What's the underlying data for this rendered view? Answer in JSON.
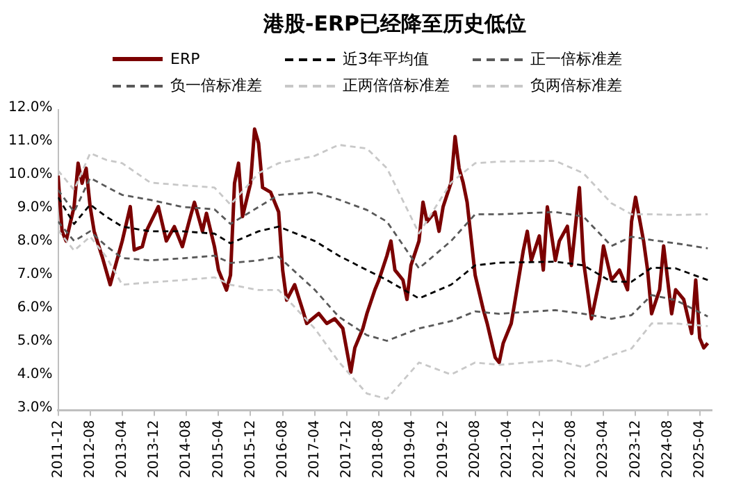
{
  "chart_data": {
    "type": "line",
    "title": "港股-ERP已经降至历史低位",
    "legend": "top",
    "marker": "none",
    "xlim": [
      "2011-12",
      "2025-07"
    ],
    "xticks": [
      "2011-12",
      "2012-08",
      "2013-04",
      "2013-12",
      "2014-08",
      "2015-04",
      "2015-12",
      "2016-08",
      "2017-04",
      "2017-12",
      "2018-08",
      "2019-04",
      "2019-12",
      "2020-08",
      "2021-04",
      "2021-12",
      "2022-08",
      "2023-04",
      "2023-12",
      "2024-08",
      "2025-04"
    ],
    "ylim": [
      3,
      12
    ],
    "yticks": [
      {
        "value": 3,
        "label": "3.0%"
      },
      {
        "value": 4,
        "label": "4.0%"
      },
      {
        "value": 5,
        "label": "5.0%"
      },
      {
        "value": 6,
        "label": "6.0%"
      },
      {
        "value": 7,
        "label": "7.0%"
      },
      {
        "value": 8,
        "label": "8.0%"
      },
      {
        "value": 9,
        "label": "9.0%"
      },
      {
        "value": 10,
        "label": "10.0%"
      },
      {
        "value": 11,
        "label": "11.0%"
      },
      {
        "value": 12,
        "label": "12.0%"
      }
    ],
    "series": [
      {
        "name": "ERP",
        "color": "#7b0000",
        "line_style": "solid",
        "x": [
          "2011-12",
          "2012-01",
          "2012-02",
          "2012-04",
          "2012-05",
          "2012-06",
          "2012-07",
          "2012-08",
          "2012-09",
          "2012-11",
          "2013-01",
          "2013-02",
          "2013-04",
          "2013-06",
          "2013-07",
          "2013-09",
          "2013-10",
          "2014-01",
          "2014-03",
          "2014-05",
          "2014-07",
          "2014-09",
          "2014-10",
          "2014-12",
          "2015-01",
          "2015-03",
          "2015-04",
          "2015-06",
          "2015-07",
          "2015-08",
          "2015-09",
          "2015-10",
          "2015-12",
          "2016-01",
          "2016-02",
          "2016-03",
          "2016-05",
          "2016-07",
          "2016-08",
          "2016-09",
          "2016-11",
          "2017-01",
          "2017-02",
          "2017-05",
          "2017-07",
          "2017-09",
          "2017-11",
          "2018-01",
          "2018-02",
          "2018-04",
          "2018-05",
          "2018-07",
          "2018-08",
          "2018-10",
          "2018-11",
          "2018-12",
          "2019-02",
          "2019-03",
          "2019-04",
          "2019-06",
          "2019-07",
          "2019-08",
          "2019-10",
          "2019-11",
          "2019-12",
          "2020-02",
          "2020-03",
          "2020-04",
          "2020-05",
          "2020-06",
          "2020-08",
          "2020-10",
          "2020-11",
          "2021-01",
          "2021-02",
          "2021-03",
          "2021-05",
          "2021-06",
          "2021-08",
          "2021-09",
          "2021-10",
          "2021-12",
          "2022-01",
          "2022-02",
          "2022-04",
          "2022-05",
          "2022-07",
          "2022-08",
          "2022-10",
          "2022-11",
          "2023-01",
          "2023-03",
          "2023-04",
          "2023-06",
          "2023-08",
          "2023-10",
          "2023-11",
          "2023-12",
          "2024-02",
          "2024-03",
          "2024-04",
          "2024-06",
          "2024-07",
          "2024-09",
          "2024-10",
          "2024-12",
          "2025-02",
          "2025-03",
          "2025-04",
          "2025-05",
          "2025-06"
        ],
        "values": [
          10.03,
          8.36,
          8.07,
          9.1,
          10.4,
          9.8,
          10.25,
          9.1,
          8.36,
          7.6,
          6.76,
          7.2,
          8.07,
          9.1,
          7.8,
          7.9,
          8.36,
          9.1,
          8.07,
          8.5,
          7.9,
          8.8,
          9.23,
          8.36,
          8.9,
          7.9,
          7.2,
          6.6,
          7.05,
          9.8,
          10.4,
          8.8,
          9.8,
          11.42,
          11.0,
          9.67,
          9.53,
          8.94,
          7.2,
          6.3,
          6.76,
          6.0,
          5.6,
          5.9,
          5.6,
          5.74,
          5.45,
          4.14,
          4.87,
          5.45,
          5.89,
          6.61,
          6.9,
          7.63,
          8.07,
          7.2,
          6.9,
          6.32,
          7.34,
          8.07,
          9.23,
          8.65,
          8.94,
          8.36,
          9.09,
          9.82,
          11.2,
          10.25,
          9.82,
          9.23,
          7.05,
          6.03,
          5.6,
          4.58,
          4.43,
          5.01,
          5.6,
          6.32,
          7.78,
          8.36,
          7.49,
          8.22,
          7.2,
          9.09,
          7.49,
          8.07,
          8.51,
          7.34,
          9.67,
          7.49,
          5.74,
          6.9,
          7.92,
          6.9,
          7.2,
          6.61,
          8.65,
          9.38,
          8.07,
          7.2,
          5.89,
          6.61,
          7.92,
          5.89,
          6.61,
          6.32,
          5.3,
          6.9,
          5.16,
          4.87,
          5.01
        ]
      },
      {
        "name": "近3年平均值",
        "color": "#000000",
        "line_style": "dashed",
        "x": [
          "2011-12",
          "2012-04",
          "2012-08",
          "2012-12",
          "2013-04",
          "2013-11",
          "2014-07",
          "2015-03",
          "2015-07",
          "2016-02",
          "2016-07",
          "2017-04",
          "2017-10",
          "2018-05",
          "2018-10",
          "2019-06",
          "2020-02",
          "2020-08",
          "2021-02",
          "2022-04",
          "2022-11",
          "2023-06",
          "2023-11",
          "2024-04",
          "2024-10",
          "2025-06"
        ],
        "values": [
          9.38,
          8.58,
          9.16,
          8.8,
          8.5,
          8.36,
          8.36,
          8.29,
          8.0,
          8.36,
          8.5,
          8.07,
          7.63,
          7.2,
          6.9,
          6.35,
          6.76,
          7.34,
          7.42,
          7.45,
          7.34,
          6.85,
          6.85,
          7.27,
          7.25,
          6.9
        ]
      },
      {
        "name": "正一倍标准差",
        "color": "#595959",
        "line_style": "dashed",
        "x": [
          "2011-12",
          "2012-04",
          "2012-08",
          "2012-12",
          "2013-04",
          "2013-11",
          "2014-07",
          "2015-03",
          "2015-07",
          "2016-02",
          "2016-07",
          "2017-04",
          "2017-10",
          "2018-05",
          "2018-10",
          "2019-06",
          "2020-02",
          "2020-08",
          "2021-02",
          "2022-04",
          "2022-11",
          "2023-06",
          "2023-11",
          "2024-04",
          "2024-10",
          "2025-06"
        ],
        "values": [
          9.6,
          8.94,
          9.96,
          9.7,
          9.45,
          9.3,
          9.09,
          9.02,
          8.58,
          9.09,
          9.45,
          9.53,
          9.31,
          9.0,
          8.65,
          7.25,
          8.07,
          8.87,
          8.87,
          8.94,
          8.8,
          7.92,
          8.2,
          8.1,
          8.0,
          7.85
        ]
      },
      {
        "name": "负一倍标准差",
        "color": "#595959",
        "line_style": "dashed",
        "x": [
          "2011-12",
          "2012-04",
          "2012-08",
          "2012-12",
          "2013-04",
          "2013-11",
          "2014-07",
          "2015-03",
          "2015-07",
          "2016-02",
          "2016-07",
          "2017-04",
          "2017-10",
          "2018-05",
          "2018-10",
          "2019-06",
          "2020-02",
          "2020-08",
          "2021-02",
          "2022-04",
          "2022-11",
          "2023-06",
          "2023-11",
          "2024-04",
          "2024-10",
          "2025-06"
        ],
        "values": [
          8.65,
          8.07,
          8.36,
          7.92,
          7.56,
          7.49,
          7.55,
          7.63,
          7.41,
          7.49,
          7.6,
          6.61,
          5.8,
          5.25,
          5.08,
          5.45,
          5.67,
          5.96,
          5.89,
          6.0,
          5.89,
          5.74,
          5.85,
          6.45,
          6.3,
          5.81
        ]
      },
      {
        "name": "正两倍倍标准差",
        "color": "#c8c8c8",
        "line_style": "dashed",
        "x": [
          "2011-12",
          "2012-04",
          "2012-08",
          "2012-12",
          "2013-04",
          "2013-11",
          "2014-07",
          "2015-03",
          "2015-07",
          "2016-02",
          "2016-07",
          "2017-04",
          "2017-10",
          "2018-05",
          "2018-10",
          "2019-06",
          "2020-02",
          "2020-08",
          "2021-02",
          "2022-04",
          "2022-11",
          "2023-06",
          "2023-11",
          "2024-04",
          "2024-10",
          "2025-06"
        ],
        "values": [
          10.18,
          9.6,
          10.7,
          10.5,
          10.4,
          9.82,
          9.74,
          9.67,
          9.16,
          10.1,
          10.4,
          10.62,
          10.95,
          10.84,
          10.25,
          8.3,
          9.82,
          10.4,
          10.45,
          10.47,
          10.1,
          9.2,
          8.87,
          8.87,
          8.85,
          8.87
        ]
      },
      {
        "name": "负两倍标准差",
        "color": "#c8c8c8",
        "line_style": "dashed",
        "x": [
          "2011-12",
          "2012-04",
          "2012-08",
          "2012-12",
          "2013-04",
          "2013-11",
          "2014-07",
          "2015-03",
          "2015-07",
          "2016-02",
          "2016-07",
          "2017-04",
          "2017-10",
          "2018-05",
          "2018-10",
          "2019-06",
          "2020-02",
          "2020-08",
          "2021-02",
          "2022-04",
          "2022-11",
          "2023-06",
          "2023-11",
          "2024-04",
          "2024-10",
          "2025-06"
        ],
        "values": [
          8.4,
          7.78,
          8.2,
          7.6,
          6.76,
          6.83,
          6.9,
          6.98,
          6.76,
          6.6,
          6.6,
          5.45,
          4.45,
          3.5,
          3.34,
          4.43,
          4.07,
          4.43,
          4.36,
          4.5,
          4.29,
          4.65,
          4.85,
          5.6,
          5.6,
          5.52
        ]
      }
    ]
  }
}
